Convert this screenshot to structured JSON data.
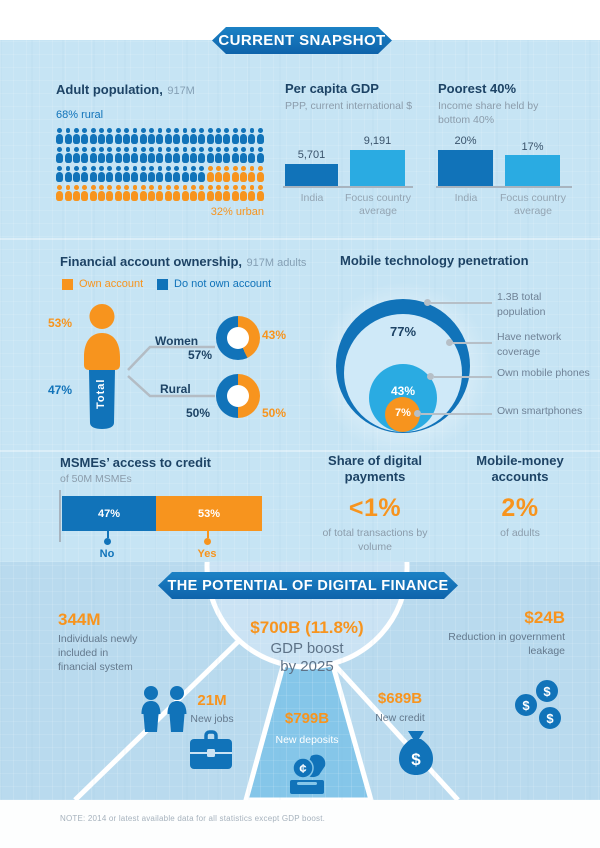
{
  "colors": {
    "blue": "#1173b9",
    "light_blue": "#2aabe2",
    "orange": "#f7941e",
    "navy": "#1d4365",
    "pale_circle": "#cfe9f8",
    "section_bg": "#c6e4f4",
    "potential_bg": "#b9daee"
  },
  "banners": {
    "snapshot": "CURRENT SNAPSHOT",
    "potential": "THE POTENTIAL OF DIGITAL FINANCE"
  },
  "adult_population": {
    "title": "Adult population,",
    "total": "917M",
    "rural_label": "68% rural",
    "urban_label": "32% urban"
  },
  "per_capita_gdp": {
    "title": "Per capita GDP",
    "subtitle": "PPP, current international $",
    "value_labels": [
      "5,701",
      "9,191"
    ],
    "categories": [
      "India",
      "Focus country average"
    ]
  },
  "poorest_40": {
    "title": "Poorest 40%",
    "subtitle": "Income share held by bottom 40%",
    "value_labels": [
      "20%",
      "17%"
    ],
    "categories": [
      "India",
      "Focus country average"
    ]
  },
  "account_ownership": {
    "title": "Financial account ownership,",
    "suffix": "917M adults",
    "legend_own": "Own account",
    "legend_not": "Do not own account",
    "total_label": "Total",
    "total_own": "53%",
    "total_not": "47%",
    "women_label": "Women",
    "women_own": "43%",
    "women_not": "57%",
    "rural_label": "Rural",
    "rural_own": "50%",
    "rural_not": "50%"
  },
  "mobile_penetration": {
    "title": "Mobile technology penetration",
    "network_pct": "77%",
    "mobile_pct": "43%",
    "smartphone_pct": "7%",
    "callouts": [
      "1.3B total population",
      "Have network coverage",
      "Own mobile phones",
      "Own smartphones"
    ]
  },
  "msme": {
    "title": "MSMEs’ access to credit",
    "subtitle": "of 50M MSMEs",
    "no_pct": "47%",
    "no_label": "No",
    "yes_pct": "53%",
    "yes_label": "Yes"
  },
  "digital_payments": {
    "title": "Share of digital payments",
    "value": "<1%",
    "note": "of total transactions by volume"
  },
  "mobile_money": {
    "title": "Mobile-money accounts",
    "value": "2%",
    "note": "of adults"
  },
  "potential": {
    "gdp_value": "$700B (11.8%)",
    "gdp_line1": "GDP boost",
    "gdp_line2": "by 2025",
    "inclusion_value": "344M",
    "inclusion_desc": "Individuals newly included in financial system",
    "jobs_value": "21M",
    "jobs_desc": "New jobs",
    "deposits_value": "$799B",
    "deposits_desc": "New deposits",
    "credit_value": "$689B",
    "credit_desc": "New credit",
    "leakage_value": "$24B",
    "leakage_desc": "Reduction in government leakage"
  },
  "footnote": "NOTE: 2014 or latest available data for all statistics except GDP boost.",
  "chart_data": [
    {
      "id": "adult_population_pictogram",
      "type": "pictogram",
      "title": "Adult population (917M)",
      "units_total": 100,
      "unit_represents": "1% of adults",
      "grid": {
        "rows": 4,
        "cols": 25
      },
      "series": [
        {
          "name": "Rural",
          "pct": 68,
          "color": "#1173b9"
        },
        {
          "name": "Urban",
          "pct": 32,
          "color": "#f7941e"
        }
      ]
    },
    {
      "id": "per_capita_gdp",
      "type": "bar",
      "title": "Per capita GDP",
      "ylabel": "PPP, current international $",
      "categories": [
        "India",
        "Focus country average"
      ],
      "values": [
        5701,
        9191
      ]
    },
    {
      "id": "poorest_40",
      "type": "bar",
      "title": "Poorest 40% — income share held by bottom 40%",
      "categories": [
        "India",
        "Focus country average"
      ],
      "values": [
        20,
        17
      ],
      "unit": "%"
    },
    {
      "id": "account_ownership",
      "type": "pie",
      "title": "Financial account ownership (917M adults)",
      "legend": [
        "Own account",
        "Do not own account"
      ],
      "series": [
        {
          "key": "total",
          "own": 53,
          "not": 47
        },
        {
          "key": "women",
          "own": 43,
          "not": 57
        },
        {
          "key": "rural",
          "own": 50,
          "not": 50
        }
      ]
    },
    {
      "id": "mobile_penetration",
      "type": "area",
      "title": "Mobile technology penetration (concentric circles)",
      "unit": "%",
      "rings": [
        {
          "label": "1.3B total population",
          "value": null
        },
        {
          "label": "Have network coverage",
          "value": 77
        },
        {
          "label": "Own mobile phones",
          "value": 43
        },
        {
          "label": "Own smartphones",
          "value": 7
        }
      ]
    },
    {
      "id": "msme_credit",
      "type": "bar",
      "orientation": "horizontal-stacked",
      "title": "MSMEs' access to credit (of 50M MSMEs)",
      "categories": [
        "No",
        "Yes"
      ],
      "values": [
        47,
        53
      ],
      "unit": "%"
    }
  ]
}
